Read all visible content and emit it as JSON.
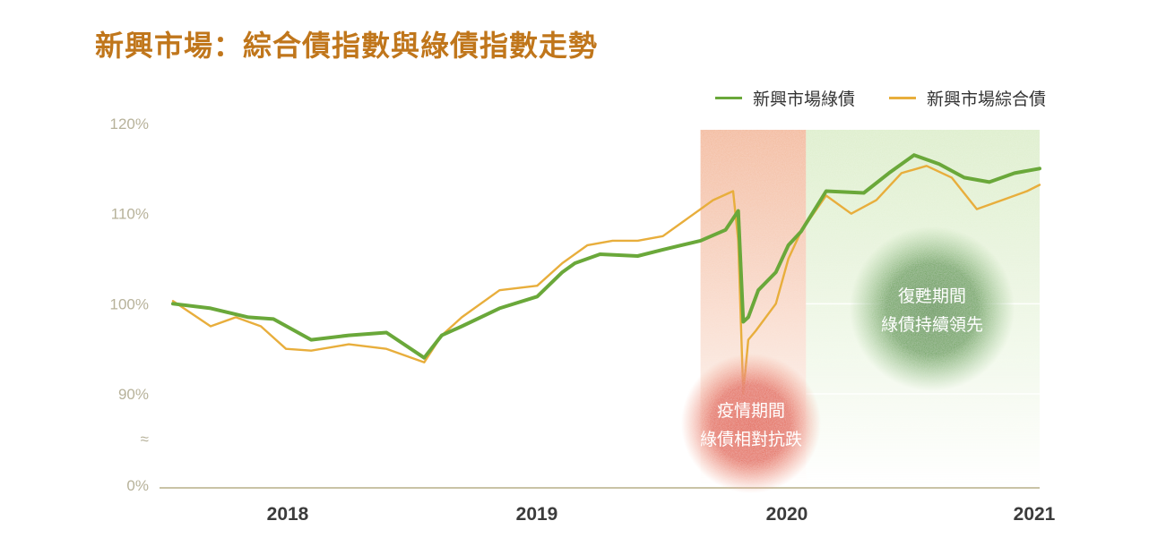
{
  "title": "新興市場：綜合債指數與綠債指數走勢",
  "legend": [
    {
      "label": "新興市場綠債",
      "color": "#6aa83a"
    },
    {
      "label": "新興市場綜合債",
      "color": "#e8ae3c"
    }
  ],
  "colors": {
    "green_series": "#6aa83a",
    "orange_series": "#e8ae3c",
    "covid_band": "#f0a880",
    "recovery_band": "#d7ebc2",
    "covid_bubble": "#e2553a",
    "recovery_bubble": "#4f8f3a",
    "axis": "#c9c3a6",
    "title": "#c0761b"
  },
  "chart_data": {
    "type": "line",
    "title": "新興市場：綜合債指數與綠債指數走勢",
    "xlabel": "",
    "ylabel": "",
    "x_ticks": [
      "2018",
      "2019",
      "2020",
      "2021"
    ],
    "y_ticks": [
      "0%",
      "≈",
      "90%",
      "100%",
      "110%",
      "120%"
    ],
    "ylim": [
      90,
      120
    ],
    "y_axis_break": true,
    "grid": false,
    "legend_position": "top-right",
    "series": [
      {
        "name": "新興市場綠債",
        "color": "#6aa83a",
        "x": [
          2017.55,
          2017.7,
          2017.85,
          2017.95,
          2018.1,
          2018.25,
          2018.4,
          2018.55,
          2018.62,
          2018.7,
          2018.85,
          2019.0,
          2019.1,
          2019.15,
          2019.25,
          2019.4,
          2019.5,
          2019.65,
          2019.75,
          2019.8,
          2019.82,
          2019.84,
          2019.88,
          2019.95,
          2020.0,
          2020.05,
          2020.15,
          2020.3,
          2020.4,
          2020.5,
          2020.6,
          2020.7,
          2020.8,
          2020.9,
          2021.0
        ],
        "values": [
          100.0,
          99.5,
          98.5,
          98.3,
          96.0,
          96.5,
          96.8,
          94.0,
          96.5,
          97.5,
          99.5,
          100.8,
          103.5,
          104.5,
          105.5,
          105.3,
          106.0,
          107.0,
          108.2,
          110.3,
          98.0,
          98.5,
          101.5,
          103.5,
          106.5,
          108.0,
          112.5,
          112.3,
          114.5,
          116.5,
          115.5,
          114.0,
          113.5,
          114.5,
          115.0
        ]
      },
      {
        "name": "新興市場綜合債",
        "color": "#e8ae3c",
        "x": [
          2017.55,
          2017.7,
          2017.8,
          2017.9,
          2018.0,
          2018.1,
          2018.25,
          2018.4,
          2018.55,
          2018.62,
          2018.7,
          2018.85,
          2019.0,
          2019.1,
          2019.2,
          2019.3,
          2019.4,
          2019.5,
          2019.6,
          2019.7,
          2019.78,
          2019.8,
          2019.82,
          2019.84,
          2019.87,
          2019.95,
          2020.0,
          2020.05,
          2020.15,
          2020.25,
          2020.35,
          2020.45,
          2020.55,
          2020.65,
          2020.75,
          2020.85,
          2020.95,
          2021.0
        ],
        "values": [
          100.3,
          97.5,
          98.5,
          97.5,
          95.0,
          94.8,
          95.5,
          95.0,
          93.5,
          96.5,
          98.5,
          101.5,
          102.0,
          104.5,
          106.5,
          107.0,
          107.0,
          107.5,
          109.5,
          111.5,
          112.5,
          107.0,
          90.0,
          96.0,
          97.0,
          100.0,
          105.0,
          108.0,
          112.0,
          110.0,
          111.5,
          114.5,
          115.3,
          114.0,
          110.5,
          111.5,
          112.5,
          113.2
        ]
      }
    ],
    "highlight_bands": [
      {
        "from": 2019.65,
        "to": 2020.07,
        "label": "covid"
      },
      {
        "from": 2020.07,
        "to": 2021.0,
        "label": "recovery"
      }
    ],
    "annotations": [
      {
        "lines": [
          "疫情期間",
          "綠債相對抗跌"
        ],
        "band": "covid"
      },
      {
        "lines": [
          "復甦期間",
          "綠債持續領先"
        ],
        "band": "recovery"
      }
    ]
  }
}
